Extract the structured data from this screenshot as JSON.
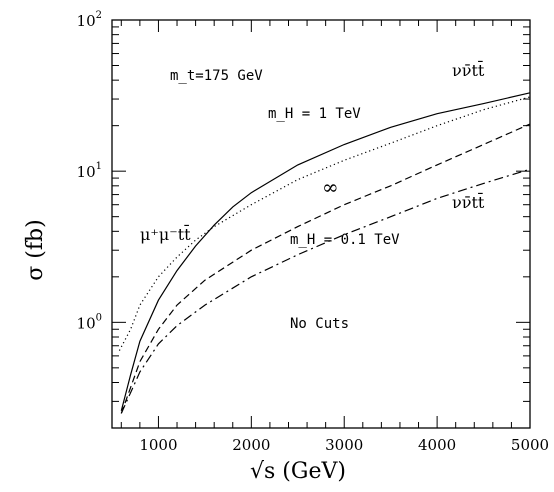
{
  "chart_data": {
    "type": "line",
    "xlabel": "√s   (GeV)",
    "ylabel": "σ   (fb)",
    "xlim": [
      500,
      5000
    ],
    "ylim": [
      0.2,
      100
    ],
    "yscale": "log",
    "grid": false,
    "x_ticks": [
      "1000",
      "2000",
      "3000",
      "4000",
      "5000"
    ],
    "y_ticks": [
      {
        "base": "10",
        "exp": "0",
        "value": 1
      },
      {
        "base": "10",
        "exp": "1",
        "value": 10
      },
      {
        "base": "10",
        "exp": "2",
        "value": 100
      }
    ],
    "annotations": {
      "mt": "m_t=175 GeV",
      "mh_1tev": "m_H = 1 TeV",
      "mh_01tev": "m_H = 0.1 TeV",
      "infinity": "∞",
      "nunu_top": "νν̄tt̄",
      "nunu_bottom": "νν̄tt̄",
      "mumu": "μ⁺μ⁻tt̄",
      "nocuts": "No Cuts"
    },
    "series": [
      {
        "style": "solid",
        "points": [
          [
            600,
            0.26
          ],
          [
            700,
            0.45
          ],
          [
            800,
            0.75
          ],
          [
            1000,
            1.4
          ],
          [
            1200,
            2.2
          ],
          [
            1400,
            3.2
          ],
          [
            1600,
            4.4
          ],
          [
            1800,
            5.8
          ],
          [
            2000,
            7.2
          ],
          [
            2500,
            11
          ],
          [
            3000,
            15
          ],
          [
            3500,
            19.5
          ],
          [
            4000,
            24
          ],
          [
            4500,
            28
          ],
          [
            5000,
            33
          ]
        ]
      },
      {
        "style": "dotted",
        "points": [
          [
            580,
            0.65
          ],
          [
            700,
            0.9
          ],
          [
            800,
            1.3
          ],
          [
            1000,
            2.0
          ],
          [
            1200,
            2.7
          ],
          [
            1400,
            3.5
          ],
          [
            1600,
            4.3
          ],
          [
            2000,
            6.0
          ],
          [
            2500,
            8.8
          ],
          [
            3000,
            11.8
          ],
          [
            3500,
            15.3
          ],
          [
            4000,
            20
          ],
          [
            4500,
            25.5
          ],
          [
            5000,
            31
          ]
        ]
      },
      {
        "style": "dashed",
        "points": [
          [
            600,
            0.25
          ],
          [
            800,
            0.55
          ],
          [
            1000,
            0.9
          ],
          [
            1200,
            1.3
          ],
          [
            1500,
            1.9
          ],
          [
            2000,
            3.0
          ],
          [
            2500,
            4.3
          ],
          [
            3000,
            6.0
          ],
          [
            3500,
            8.0
          ],
          [
            4000,
            11
          ],
          [
            4500,
            15
          ],
          [
            5000,
            20.5
          ]
        ]
      },
      {
        "style": "dashdot",
        "points": [
          [
            600,
            0.25
          ],
          [
            800,
            0.47
          ],
          [
            1000,
            0.72
          ],
          [
            1200,
            0.95
          ],
          [
            1500,
            1.3
          ],
          [
            2000,
            2.0
          ],
          [
            2500,
            2.8
          ],
          [
            3000,
            3.8
          ],
          [
            3500,
            5.0
          ],
          [
            4000,
            6.6
          ],
          [
            4500,
            8.3
          ],
          [
            5000,
            10.3
          ]
        ]
      }
    ]
  }
}
